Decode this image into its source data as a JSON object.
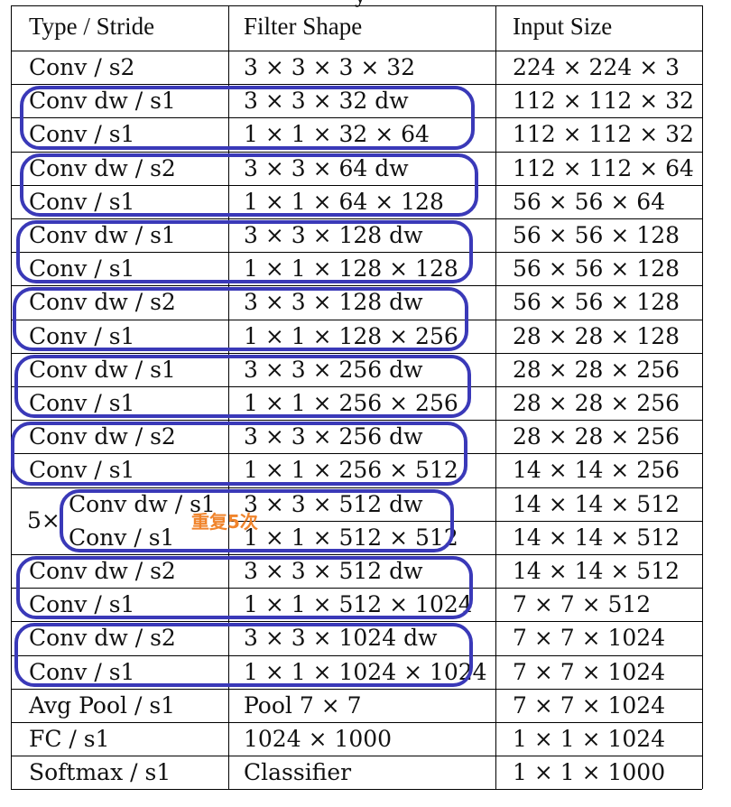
{
  "caption_fragment": "y",
  "headers": [
    "Type / Stride",
    "Filter Shape",
    "Input Size"
  ],
  "rows": [
    {
      "type": "Conv / s2",
      "filter": "3 × 3 × 3 × 32",
      "input": "224 × 224 × 3"
    },
    {
      "type": "Conv dw / s1",
      "filter": "3 × 3 × 32 dw",
      "input": "112 × 112 × 32"
    },
    {
      "type": "Conv / s1",
      "filter": "1 × 1 × 32 × 64",
      "input": "112 × 112 × 32"
    },
    {
      "type": "Conv dw / s2",
      "filter": "3 × 3 × 64 dw",
      "input": "112 × 112 × 64"
    },
    {
      "type": "Conv / s1",
      "filter": "1 × 1 × 64 × 128",
      "input": "56 × 56 × 64"
    },
    {
      "type": "Conv dw / s1",
      "filter": "3 × 3 × 128 dw",
      "input": "56 × 56 × 128"
    },
    {
      "type": "Conv / s1",
      "filter": "1 × 1 × 128 × 128",
      "input": "56 × 56 × 128"
    },
    {
      "type": "Conv dw / s2",
      "filter": "3 × 3 × 128 dw",
      "input": "56 × 56 × 128"
    },
    {
      "type": "Conv / s1",
      "filter": "1 × 1 × 128 × 256",
      "input": "28 × 28 × 128"
    },
    {
      "type": "Conv dw / s1",
      "filter": "3 × 3 × 256 dw",
      "input": "28 × 28 × 256"
    },
    {
      "type": "Conv / s1",
      "filter": "1 × 1 × 256 × 256",
      "input": "28 × 28 × 256"
    },
    {
      "type": "Conv dw / s2",
      "filter": "3 × 3 × 256 dw",
      "input": "28 × 28 × 256"
    },
    {
      "type": "Conv / s1",
      "filter": "1 × 1 × 256 × 512",
      "input": "14 × 14 × 256"
    },
    {
      "type": "Conv dw / s1",
      "filter": "3 × 3 × 512 dw",
      "input": "14 × 14 × 512"
    },
    {
      "type": "Conv / s1",
      "filter": "1 × 1 × 512 × 512",
      "input": "14 × 14 × 512"
    },
    {
      "type": "Conv dw / s2",
      "filter": "3 × 3 × 512 dw",
      "input": "14 × 14 × 512"
    },
    {
      "type": "Conv / s1",
      "filter": "1 × 1 × 512 × 1024",
      "input": "7 × 7 × 512"
    },
    {
      "type": "Conv dw / s2",
      "filter": "3 × 3 × 1024 dw",
      "input": "7 × 7 × 1024"
    },
    {
      "type": "Conv / s1",
      "filter": "1 × 1 × 1024 × 1024",
      "input": "7 × 7 × 1024"
    },
    {
      "type": "Avg Pool / s1",
      "filter": "Pool 7 × 7",
      "input": "7 × 7 × 1024"
    },
    {
      "type": "FC / s1",
      "filter": "1024 × 1000",
      "input": "1 × 1 × 1024"
    },
    {
      "type": "Softmax / s1",
      "filter": "Classifier",
      "input": "1 × 1 × 1000"
    }
  ],
  "repeat_prefix": "5×",
  "annotation_text": "重复5次",
  "colors": {
    "box_border": "#3a39b8",
    "annotation": "#f0842c",
    "text": "#111111"
  }
}
